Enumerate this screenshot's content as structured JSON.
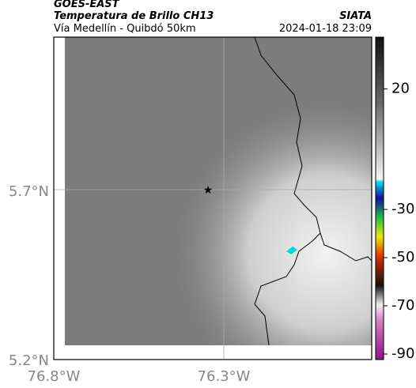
{
  "header": {
    "source": "GOES-EAST",
    "title": "Temperatura de Brillo CH13",
    "subtitle": "Vía Medellín - Quibdó 50km",
    "agency": "SIATA",
    "timestamp": "2024-01-18 23:09"
  },
  "map": {
    "lat_ticks": [
      "5.7°N",
      "5.2°N"
    ],
    "lon_ticks": [
      "76.8°W",
      "76.3°W"
    ]
  },
  "colorbar": {
    "lim": [
      41.5,
      -92.3
    ],
    "ticks": [
      20,
      -30,
      -50,
      -70,
      -90
    ]
  }
}
